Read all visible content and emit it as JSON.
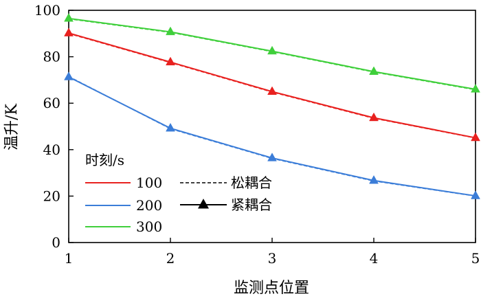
{
  "chart_data": {
    "type": "line",
    "xlabel": "监测点位置",
    "ylabel": "温升/K",
    "xlim": [
      1,
      5
    ],
    "ylim": [
      0,
      100
    ],
    "xticks": [
      1,
      2,
      3,
      4,
      5
    ],
    "yticks": [
      0,
      20,
      40,
      60,
      80,
      100
    ],
    "legend": {
      "title": "时刻/s",
      "placement": "lower-left",
      "style_entries": [
        {
          "label": "松耦合",
          "style": "dashed"
        },
        {
          "label": "紧耦合",
          "style": "solid-triangle"
        }
      ]
    },
    "x": [
      1,
      2,
      3,
      4,
      5
    ],
    "series": [
      {
        "name": "100",
        "color": "#e8211f",
        "loose": [
          90.0,
          77.5,
          64.8,
          53.5,
          45.0
        ],
        "tight": [
          90.2,
          77.7,
          65.0,
          53.7,
          45.1
        ]
      },
      {
        "name": "200",
        "color": "#3b7dd8",
        "loose": [
          71.5,
          49.0,
          36.2,
          26.5,
          20.0
        ],
        "tight": [
          71.3,
          49.2,
          36.4,
          26.7,
          20.1
        ]
      },
      {
        "name": "300",
        "color": "#3fcf3b",
        "loose": [
          96.3,
          90.5,
          82.2,
          73.4,
          65.8
        ],
        "tight": [
          96.5,
          90.7,
          82.4,
          73.6,
          66.0
        ]
      }
    ]
  }
}
